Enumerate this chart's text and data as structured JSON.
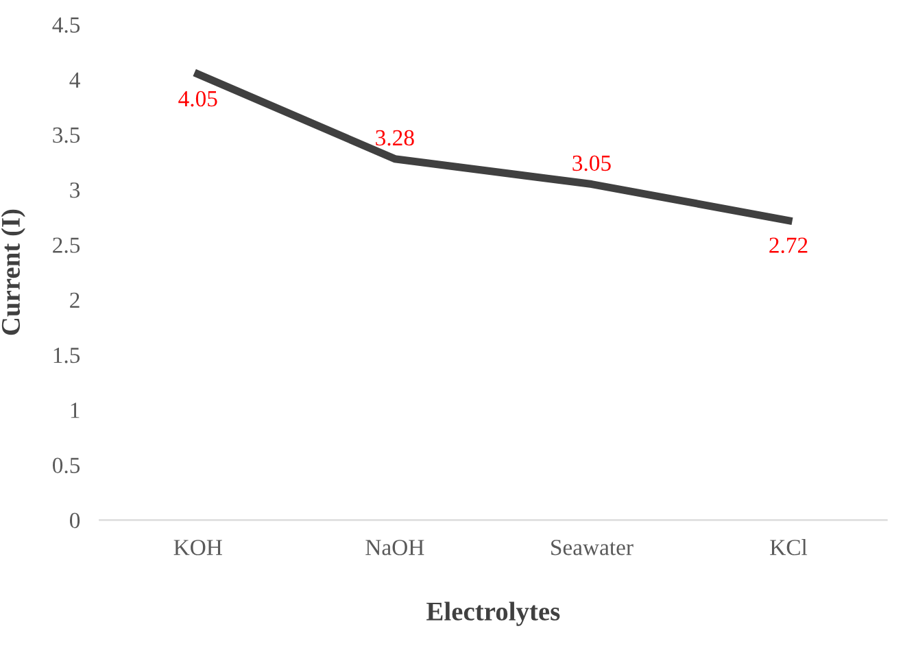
{
  "chart_data": {
    "type": "line",
    "xlabel": "Electrolytes",
    "ylabel": "Current (I)",
    "categories": [
      "KOH",
      "NaOH",
      "Seawater",
      "KCl"
    ],
    "series": [
      {
        "color": "#404040",
        "values": [
          4.05,
          3.28,
          3.05,
          2.72
        ]
      }
    ],
    "ylim": [
      0,
      4.5
    ],
    "yticks": [
      0,
      0.5,
      1,
      1.5,
      2,
      2.5,
      3,
      3.5,
      4,
      4.5
    ],
    "data_labels": true,
    "grid": false,
    "legend": false,
    "marker": "none",
    "line_style": "solid"
  }
}
